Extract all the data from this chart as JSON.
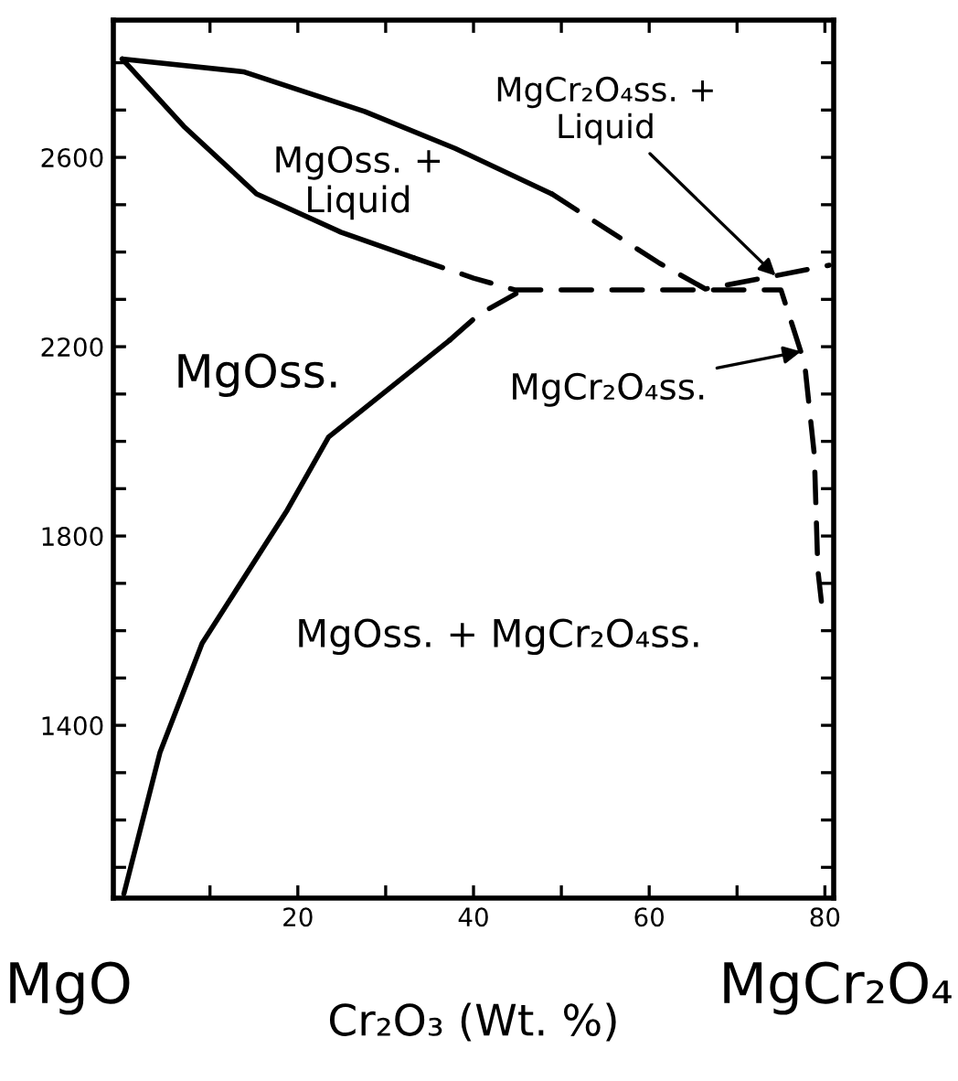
{
  "chart_data": {
    "type": "line",
    "xlabel": "Cr₂O₃ (Wt. %)",
    "xlim": [
      -1,
      81
    ],
    "ylim": [
      1035,
      2890
    ],
    "xticks": [
      {
        "value": 10,
        "label": null
      },
      20,
      {
        "value": 30,
        "label": null
      },
      40,
      {
        "value": 50,
        "label": null
      },
      60,
      {
        "value": 70,
        "label": null
      },
      80
    ],
    "yticks": [
      {
        "value": 1100,
        "label": null
      },
      {
        "value": 1200,
        "label": null
      },
      {
        "value": 1300,
        "label": null
      },
      1400,
      {
        "value": 1500,
        "label": null
      },
      {
        "value": 1600,
        "label": null
      },
      {
        "value": 1700,
        "label": null
      },
      1800,
      {
        "value": 1900,
        "label": null
      },
      {
        "value": 2000,
        "label": null
      },
      {
        "value": 2100,
        "label": null
      },
      2200,
      {
        "value": 2300,
        "label": null
      },
      {
        "value": 2400,
        "label": null
      },
      {
        "value": 2500,
        "label": null
      },
      2600,
      {
        "value": 2700,
        "label": null
      },
      {
        "value": 2800,
        "label": null
      }
    ],
    "grid": false,
    "legend": false,
    "marker": "none",
    "series": [
      {
        "color": "#000000",
        "line_style": "solid",
        "x": [
          0,
          13.8,
          27.6,
          37.9,
          48.9
        ],
        "values": [
          2808,
          2781,
          2697,
          2619,
          2523
        ]
      },
      {
        "color": "#000000",
        "line_style": "dashed",
        "x": [
          48.9,
          61.2,
          66.4,
          74.4,
          80.5
        ],
        "values": [
          2523,
          2376,
          2322,
          2350,
          2372
        ]
      },
      {
        "color": "#000000",
        "line_style": "solid",
        "x": [
          0,
          7,
          15.3,
          24.9,
          33.2
        ],
        "values": [
          2808,
          2666,
          2523,
          2442,
          2388
        ]
      },
      {
        "color": "#000000",
        "line_style": "dashed",
        "x": [
          33.2,
          40,
          44.7,
          75,
          77.7,
          78.8,
          79.2,
          79.6
        ],
        "values": [
          2388,
          2345,
          2320,
          2320,
          2164,
          1971,
          1728,
          1662
        ]
      },
      {
        "color": "#000000",
        "line_style": "solid",
        "x": [
          0.2,
          4.3,
          9.1,
          18.8,
          23.5,
          37.3
        ],
        "values": [
          1044,
          1342,
          1573,
          1855,
          2009,
          2214
        ]
      },
      {
        "color": "#000000",
        "line_style": "dashed",
        "x": [
          37.3,
          40.6,
          45.6
        ],
        "values": [
          2214,
          2268,
          2320
        ]
      }
    ],
    "annotations": [
      "MgOss. +\nLiquid",
      {
        "text": "MgCr₂O₄ss. +\nLiquid",
        "x": 74.4,
        "y": 2350
      },
      "MgOss.",
      {
        "text": "MgCr₂O₄ss.",
        "x": 77.3,
        "y": 2190
      },
      "MgOss. + MgCr₂O₄ss.",
      "MgO",
      "MgCr₂O₄"
    ]
  }
}
